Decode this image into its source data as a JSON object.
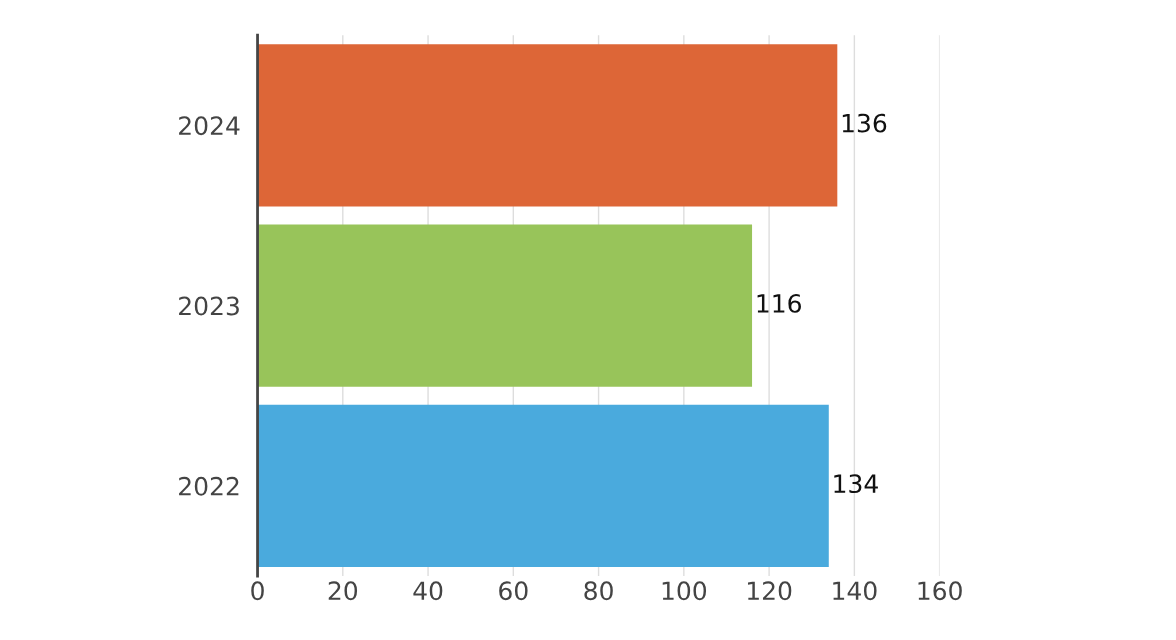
{
  "chart_data": {
    "type": "bar",
    "orientation": "horizontal",
    "categories": [
      "2024",
      "2023",
      "2022"
    ],
    "values": [
      136,
      116,
      134
    ],
    "colors": [
      "#dd6637",
      "#98c45a",
      "#4aaadd"
    ],
    "xlim": [
      0,
      160
    ],
    "xticks": [
      0,
      20,
      40,
      60,
      80,
      100,
      120,
      140,
      160
    ],
    "grid": "x",
    "data_labels": true,
    "legend": false
  }
}
